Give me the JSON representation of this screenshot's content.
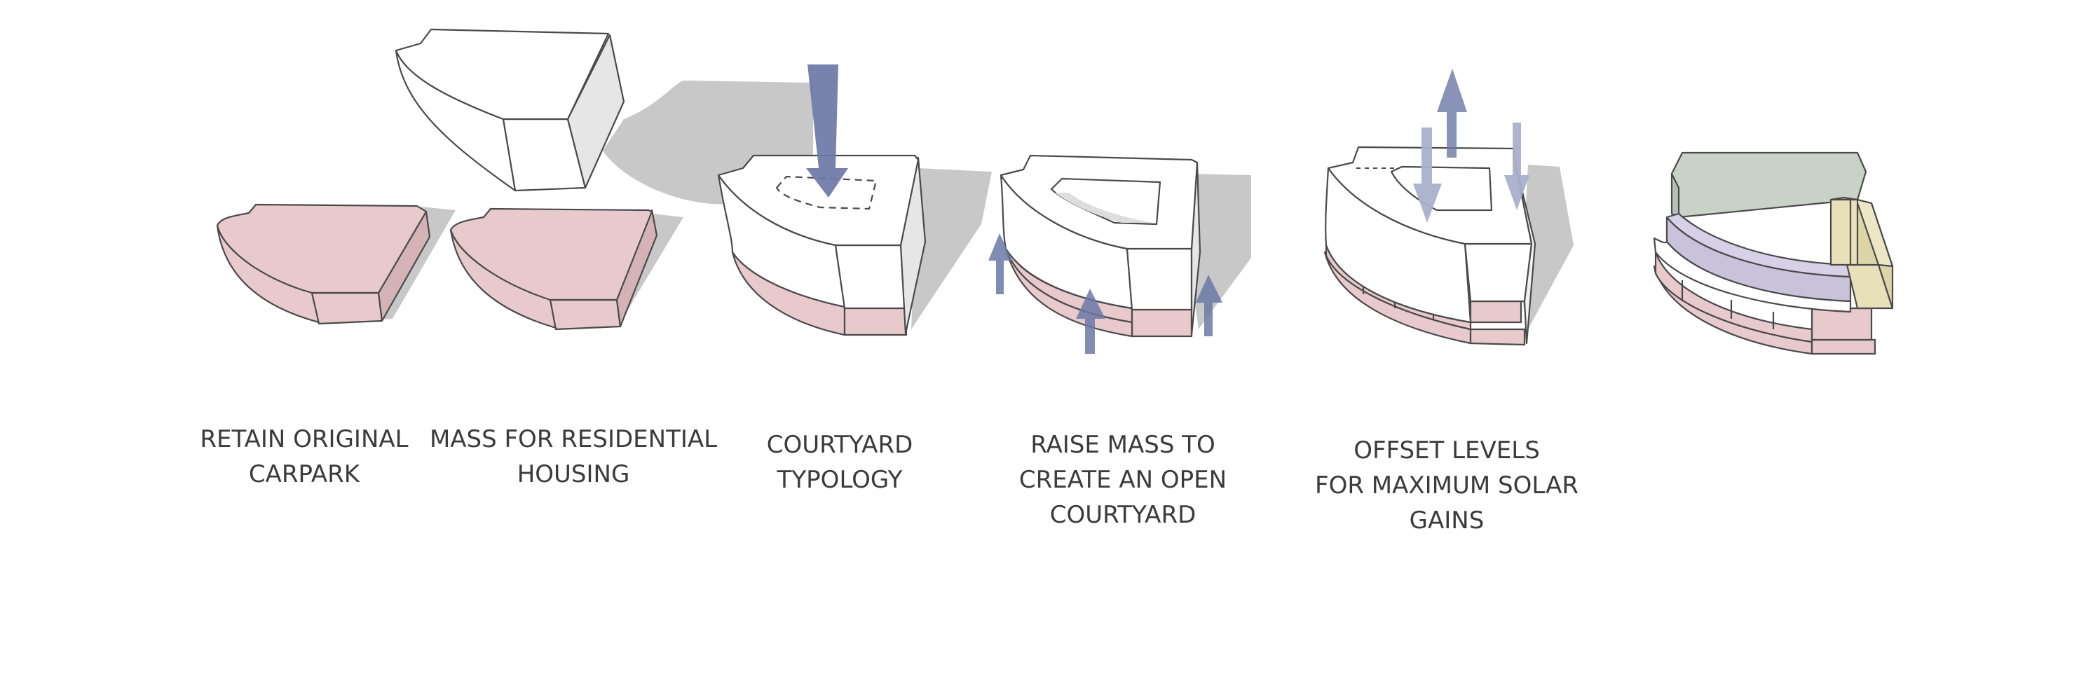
{
  "steps": [
    {
      "id": "retain-carpark",
      "lines": [
        "RETAIN ORIGINAL",
        "CARPARK"
      ]
    },
    {
      "id": "mass-residential",
      "lines": [
        "MASS FOR RESIDENTIAL",
        "HOUSING"
      ]
    },
    {
      "id": "courtyard-typology",
      "lines": [
        "COURTYARD",
        "TYPOLOGY"
      ]
    },
    {
      "id": "raise-mass",
      "lines": [
        "RAISE MASS TO",
        "CREATE AN OPEN",
        "COURTYARD"
      ]
    },
    {
      "id": "offset-levels",
      "lines": [
        "OFFSET LEVELS",
        "FOR MAXIMUM SOLAR",
        "GAINS"
      ]
    }
  ],
  "colors": {
    "carpark": "#e8c9cc",
    "carpark_dark": "#d4b2b6",
    "mass": "#ffffff",
    "shadow": "#c8c8c8",
    "arrow": "#6b78a6",
    "arrow_light": "#a9b0cc",
    "roof_green": "#c9d2c6",
    "block_yellow": "#e7e0b8",
    "bridge_purple": "#c8c3da"
  }
}
